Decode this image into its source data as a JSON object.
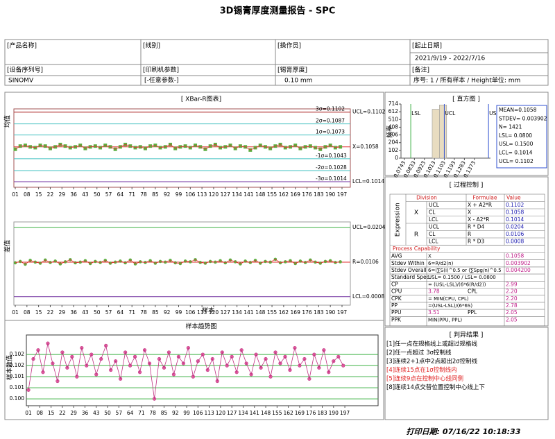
{
  "title": "3D锡膏厚度测量报告 - SPC",
  "info": [
    {
      "label": "[产品名称]"
    },
    {
      "label": "[线别]"
    },
    {
      "label": "[操作员]"
    },
    {
      "label": "[起止日期]",
      "value": "2021/9/19 - 2022/7/16"
    },
    {
      "label": "[设备序列号]",
      "value": "SINOMV"
    },
    {
      "label": "[印刷机参数]",
      "value": "[-任意参数-]"
    },
    {
      "label": "[锡膏厚度]",
      "value": "0.10 mm"
    },
    {
      "label": "[备注]",
      "value": "序号: 1 / 所有样本 / Height单位: mm"
    }
  ],
  "chart_data": [
    {
      "type": "line",
      "title": "[ XBar-R图表]",
      "y_label": "均值",
      "marker": "square",
      "frame_color": "#a05050",
      "xlim": [
        0.17,
        202
      ],
      "ylim": [
        0.1007,
        0.1106
      ],
      "xticks": [
        {
          "value": 1,
          "label": "01"
        },
        {
          "value": 8,
          "label": "08"
        },
        15,
        22,
        29,
        36,
        43,
        50,
        57,
        64,
        71,
        78,
        85,
        92,
        99,
        106,
        113,
        120,
        127,
        134,
        141,
        148,
        155,
        162,
        169,
        176,
        183,
        190,
        197
      ],
      "control_lines": [
        {
          "label": "UCL=0.1102",
          "value": 0.1102,
          "color": "#b03030"
        },
        {
          "label": "X=0.1058",
          "value": 0.1058,
          "color": "#e03030"
        },
        {
          "label": "LCL=0.1014",
          "value": 0.1014,
          "color": "#7030a0"
        }
      ],
      "sigma_lines": [
        {
          "label": "3σ=0.1102",
          "value": 0.1102,
          "color": "#b03030"
        },
        {
          "label": "2σ=0.1087",
          "value": 0.1087,
          "color": "#40c0c0"
        },
        {
          "label": "1σ=0.1073",
          "value": 0.1073,
          "color": "#40c0c0"
        },
        {
          "label": "-1σ=0.1043",
          "value": 0.1043,
          "color": "#40c0c0"
        },
        {
          "label": "-2σ=0.1028",
          "value": 0.1028,
          "color": "#40c0c0"
        },
        {
          "label": "-3σ=0.1014",
          "value": 0.1014,
          "color": "#7030a0"
        }
      ],
      "series": [
        {
          "color": "#e03030",
          "marker_color": "#5cb040",
          "x": [
            1,
            4,
            7,
            10,
            13,
            16,
            19,
            22,
            25,
            28,
            31,
            34,
            37,
            40,
            43,
            46,
            49,
            52,
            55,
            58,
            61,
            64,
            67,
            70,
            73,
            76,
            79,
            82,
            85,
            88,
            91,
            94,
            97,
            100,
            103,
            106,
            109,
            112,
            115,
            118,
            121,
            124,
            127,
            130,
            133,
            136,
            139,
            142,
            145,
            148,
            151,
            154,
            157,
            160,
            163,
            166,
            169,
            172,
            175,
            178,
            181,
            184,
            187,
            190,
            193,
            196
          ],
          "values": [
            0.1055,
            0.1059,
            0.106,
            0.1058,
            0.1057,
            0.106,
            0.1059,
            0.1056,
            0.1058,
            0.1061,
            0.1059,
            0.1057,
            0.1058,
            0.106,
            0.1056,
            0.1058,
            0.1059,
            0.1057,
            0.106,
            0.1058,
            0.1055,
            0.1058,
            0.1061,
            0.1059,
            0.1057,
            0.1058,
            0.1056,
            0.1059,
            0.106,
            0.1057,
            0.1058,
            0.1061,
            0.1056,
            0.1058,
            0.1059,
            0.1057,
            0.106,
            0.1058,
            0.1055,
            0.1059,
            0.1061,
            0.1057,
            0.1058,
            0.106,
            0.1056,
            0.1059,
            0.1058,
            0.1054,
            0.1057,
            0.106,
            0.1058,
            0.1056,
            0.1059,
            0.1061,
            0.1057,
            0.1058,
            0.106,
            0.1056,
            0.1058,
            0.1059,
            0.1057,
            0.1055,
            0.1058,
            0.106,
            0.1057,
            0.1058
          ]
        }
      ]
    },
    {
      "type": "line",
      "y_label": "差值",
      "x_label": "样本",
      "marker": "circle",
      "frame_color": "#999999",
      "xlim": [
        0.17,
        202
      ],
      "ylim": [
        -0.0016,
        0.022
      ],
      "xticks": [
        {
          "value": 1,
          "label": "01"
        },
        {
          "value": 8,
          "label": "08"
        },
        15,
        22,
        29,
        36,
        43,
        50,
        57,
        64,
        71,
        78,
        85,
        92,
        99,
        106,
        113,
        120,
        127,
        134,
        141,
        148,
        155,
        162,
        169,
        176,
        183,
        190,
        197
      ],
      "control_lines": [
        {
          "label": "UCL=0.0204",
          "value": 0.0204,
          "color": "#3cb043"
        },
        {
          "label": "R=0.0106",
          "value": 0.0106,
          "color": "#e03030"
        },
        {
          "label": "LCL=0.0008",
          "value": 0.0008,
          "color": "#7030a0"
        }
      ],
      "series": [
        {
          "color": "#e03030",
          "marker_color": "#5cb040",
          "x": [
            1,
            4,
            7,
            10,
            13,
            16,
            19,
            22,
            25,
            28,
            31,
            34,
            37,
            40,
            43,
            46,
            49,
            52,
            55,
            58,
            61,
            64,
            67,
            70,
            73,
            76,
            79,
            82,
            85,
            88,
            91,
            94,
            97,
            100,
            103,
            106,
            109,
            112,
            115,
            118,
            121,
            124,
            127,
            130,
            133,
            136,
            139,
            142,
            145,
            148,
            151,
            154,
            157,
            160,
            163,
            166,
            169,
            172,
            175,
            178,
            181,
            184,
            187,
            190,
            193,
            196
          ],
          "values": [
            0.0104,
            0.0108,
            0.01,
            0.0111,
            0.0106,
            0.0103,
            0.0112,
            0.0105,
            0.0109,
            0.0101,
            0.0107,
            0.0113,
            0.0104,
            0.0106,
            0.011,
            0.0102,
            0.0108,
            0.0105,
            0.0111,
            0.0103,
            0.0106,
            0.0109,
            0.0104,
            0.0112,
            0.0101,
            0.0107,
            0.0105,
            0.011,
            0.0103,
            0.0108,
            0.0106,
            0.0111,
            0.0104,
            0.0102,
            0.0109,
            0.0107,
            0.0113,
            0.0105,
            0.0103,
            0.0108,
            0.0106,
            0.011,
            0.0104,
            0.0112,
            0.0107,
            0.0101,
            0.0109,
            0.0105,
            0.0111,
            0.0103,
            0.0108,
            0.0106,
            0.0114,
            0.0104,
            0.0107,
            0.011,
            0.0102,
            0.0109,
            0.0105,
            0.0112,
            0.0106,
            0.0103,
            0.0108,
            0.011,
            0.0105,
            0.0107
          ]
        }
      ]
    },
    {
      "type": "histogram",
      "title": "[ 直方图 ]",
      "y_label": "频率",
      "color": "#e8dcc0",
      "bins": [
        0.0993,
        0.1058,
        0.1123
      ],
      "values": [
        645,
        701
      ],
      "xlim": [
        0.0712,
        0.1518
      ],
      "ylim": [
        0,
        714
      ],
      "xticks": [
        0.0743,
        0.0833,
        0.0923,
        0.1013,
        0.1103,
        0.1193,
        0.1283,
        0.1373
      ],
      "yticks": [
        0,
        102,
        204,
        306,
        408,
        510,
        612,
        714
      ],
      "spec_lines": [
        {
          "label": "LSL",
          "value": 0.08,
          "color": "#3cb043"
        },
        {
          "label": "UCL",
          "value": 0.1102,
          "color": "#3050d0"
        },
        {
          "label": "USL",
          "value": 0.15,
          "color": "#3050d0"
        }
      ],
      "stats": [
        "MEAN=0.1058",
        "STDEV= 0.003902",
        "N= 1421",
        "LSL= 0.0800",
        "USL= 0.1500",
        "LCL= 0.1014",
        "UCL= 0.1102"
      ]
    },
    {
      "type": "line",
      "title": "样本趋势图",
      "y_label": "样本数值",
      "marker": "circle",
      "frame_color": "#333333",
      "grid": true,
      "grid_color": "#3cb043",
      "xlim": [
        -0.3,
        217.6
      ],
      "ylim": [
        0.09969,
        0.10288
      ],
      "xticks": [
        {
          "value": 1,
          "label": "01"
        },
        {
          "value": 8,
          "label": "08"
        },
        15,
        22,
        29,
        36,
        43,
        50,
        57,
        64,
        71,
        78,
        85,
        92,
        99,
        106,
        113,
        120,
        127,
        134,
        141,
        148,
        155,
        162,
        169,
        176,
        183,
        190,
        197
      ],
      "yticks": [
        {
          "value": 0.1,
          "label": "0.100"
        },
        {
          "value": 0.1005,
          "label": "0.101"
        },
        {
          "value": 0.101,
          "label": "0.101"
        },
        {
          "value": 0.1015,
          "label": "0.102"
        },
        {
          "value": 0.102,
          "label": "0.102"
        }
      ],
      "series": [
        {
          "color": "#c03080",
          "marker_color": "#e060a0",
          "x": [
            1,
            4,
            7,
            10,
            13,
            16,
            19,
            22,
            25,
            28,
            31,
            34,
            37,
            40,
            43,
            46,
            49,
            52,
            55,
            58,
            61,
            64,
            67,
            70,
            73,
            76,
            79,
            82,
            85,
            88,
            91,
            94,
            97,
            100,
            103,
            106,
            109,
            112,
            115,
            118,
            121,
            124,
            127,
            130,
            133,
            136,
            139,
            142,
            145,
            148,
            151,
            154,
            157,
            160,
            163,
            166,
            169,
            172,
            175,
            178,
            181,
            184,
            187,
            190,
            193,
            196
          ],
          "values": [
            0.1004,
            0.1018,
            0.1022,
            0.1012,
            0.1025,
            0.1016,
            0.1008,
            0.1021,
            0.1014,
            0.1019,
            0.101,
            0.1023,
            0.1015,
            0.102,
            0.1011,
            0.1018,
            0.1024,
            0.1013,
            0.1017,
            0.1009,
            0.1021,
            0.1015,
            0.1019,
            0.1012,
            0.1022,
            0.1016,
            0.1,
            0.1018,
            0.1014,
            0.1021,
            0.1011,
            0.1019,
            0.1016,
            0.1023,
            0.101,
            0.1017,
            0.102,
            0.1013,
            0.1018,
            0.1008,
            0.1021,
            0.1015,
            0.1019,
            0.1012,
            0.1022,
            0.1016,
            0.1011,
            0.102,
            0.1014,
            0.1018,
            0.101,
            0.1021,
            0.1016,
            0.1019,
            0.1013,
            0.1023,
            0.1015,
            0.1018,
            0.1009,
            0.102,
            0.1014,
            0.1022,
            0.1012,
            0.1017,
            0.1019,
            0.1015
          ]
        }
      ]
    }
  ],
  "process_control": {
    "title": "[ 过程控制 ]",
    "expression_label": "Expression",
    "headers": [
      "Division",
      "Formulae",
      "Value"
    ],
    "rows": [
      {
        "name": "UCL",
        "formula": "X + A2*R",
        "value": "0.1102"
      },
      {
        "group": "X",
        "name": "CL",
        "formula": "X",
        "value": "0.1058"
      },
      {
        "name": "LCL",
        "formula": "X - A2*R",
        "value": "0.1014"
      },
      {
        "name": "UCL",
        "formula": "R * D4",
        "value": "0.0204"
      },
      {
        "group": "R",
        "name": "CL",
        "formula": "R",
        "value": "0.0106"
      },
      {
        "name": "LCL",
        "formula": "R * D3",
        "value": "0.0008"
      }
    ],
    "capability_title": "Process Capability",
    "capability": [
      {
        "name": "AVG",
        "formula": "X",
        "value": "0.1058"
      },
      {
        "name": "Stdev Within",
        "formula": "6=R/d2(n)",
        "value": "0.003902"
      },
      {
        "name": "Stdev Overall",
        "formula": "6=(∑S(i)^0.5 or (∑Spg/n)^0.5",
        "value": "0.004200"
      },
      {
        "name": "Standard Spec.",
        "formula": "USL= 0.1500 / LSL= 0.0800"
      },
      {
        "name": "CP",
        "formula": "= (USL-LSL)/(6*6(R/d2))",
        "value": "2.99"
      },
      {
        "name": "CPU",
        "value1": "3.78",
        "name2": "CPL",
        "value": "2.20"
      },
      {
        "name": "CPK",
        "formula": "= MIN(CPU, CPL)",
        "value": "2.20"
      },
      {
        "name": "PP",
        "formula": "=(USL-LSL)/(6*6S)",
        "value": "2.78"
      },
      {
        "name": "PPU",
        "value1": "3.51",
        "name2": "PPL",
        "value": "2.05"
      },
      {
        "name": "PPK",
        "formula": "MIN(PPU, PPL)",
        "value": "2.05"
      }
    ]
  },
  "abnormal": {
    "title": "[ 判异结果 ]",
    "items": [
      {
        "text": "[1]任一点在规格线上或超过规格线",
        "color": "#000000"
      },
      {
        "text": "[2]任一点超过 3σ控制线",
        "color": "#000000"
      },
      {
        "text": "[3]连续2+1点中2点超出2σ控制线",
        "color": "#000000"
      },
      {
        "text": "[4]连续15点在1σ控制线内",
        "color": "#e02020"
      },
      {
        "text": "[5]连续9点在控制中心线同侧",
        "color": "#e02020"
      },
      {
        "text": "[8]连续14点交替位置控制中心线上下",
        "color": "#000000"
      }
    ]
  },
  "print_date": "打印日期: 07/16/22 10:18:33"
}
